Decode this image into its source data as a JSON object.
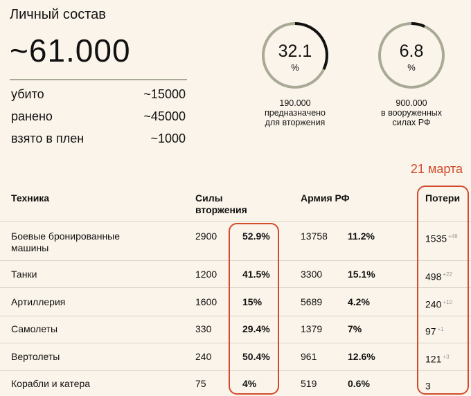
{
  "personnel": {
    "title": "Личный состав",
    "total": "~61.000",
    "stats": [
      {
        "label": "убито",
        "value": "~15000"
      },
      {
        "label": "ранено",
        "value": "~45000"
      },
      {
        "label": "взято в плен",
        "value": "~1000"
      }
    ]
  },
  "gauges": [
    {
      "value": "32.1",
      "unit": "%",
      "fraction": 0.321,
      "caption": [
        "190.000",
        "предназначено",
        "для вторжения"
      ]
    },
    {
      "value": "6.8",
      "unit": "%",
      "fraction": 0.068,
      "caption": [
        "900.000",
        "в вооруженных",
        "силах РФ"
      ]
    }
  ],
  "colors": {
    "accent": "#d24a2c",
    "gauge_track": "#a9aa95",
    "gauge_fill": "#111111",
    "background": "#fbf4ea"
  },
  "date": "21 марта",
  "table": {
    "headers": {
      "equipment": "Техника",
      "invasion_force": [
        "Силы",
        "вторжения"
      ],
      "russian_army": "Армия РФ",
      "losses": "Потери"
    },
    "rows": [
      {
        "name": [
          "Боевые бронированные",
          "машины"
        ],
        "invasion_count": "2900",
        "invasion_pct": "52.9%",
        "army_count": "13758",
        "army_pct": "11.2%",
        "losses": "1535",
        "delta": "+48"
      },
      {
        "name": [
          "Танки"
        ],
        "invasion_count": "1200",
        "invasion_pct": "41.5%",
        "army_count": "3300",
        "army_pct": "15.1%",
        "losses": "498",
        "delta": "+22"
      },
      {
        "name": [
          "Артиллерия"
        ],
        "invasion_count": "1600",
        "invasion_pct": "15%",
        "army_count": "5689",
        "army_pct": "4.2%",
        "losses": "240",
        "delta": "+10"
      },
      {
        "name": [
          "Самолеты"
        ],
        "invasion_count": "330",
        "invasion_pct": "29.4%",
        "army_count": "1379",
        "army_pct": "7%",
        "losses": "97",
        "delta": "+1"
      },
      {
        "name": [
          "Вертолеты"
        ],
        "invasion_count": "240",
        "invasion_pct": "50.4%",
        "army_count": "961",
        "army_pct": "12.6%",
        "losses": "121",
        "delta": "+3"
      },
      {
        "name": [
          "Корабли и катера"
        ],
        "invasion_count": "75",
        "invasion_pct": "4%",
        "army_count": "519",
        "army_pct": "0.6%",
        "losses": "3",
        "delta": ""
      }
    ]
  }
}
